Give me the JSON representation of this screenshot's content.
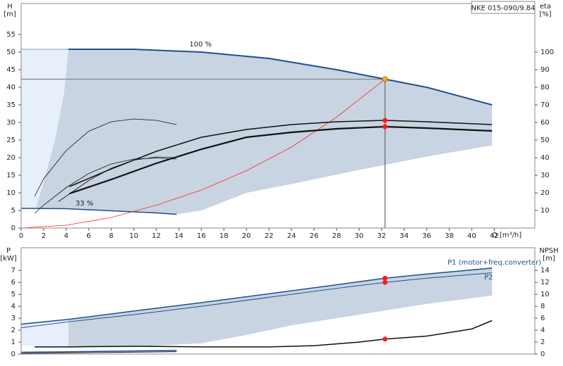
{
  "chart_data": [
    {
      "type": "line",
      "title": "NKE 015-090/9.84",
      "x_label": "Q [m³/h]",
      "y_label": "H",
      "y_unit": "[m]",
      "y2_label": "eta",
      "y2_unit": "[%]",
      "xlim": [
        0,
        45.6
      ],
      "xticks": [
        0,
        2,
        4,
        6,
        8,
        10,
        12,
        14,
        16,
        18,
        20,
        22,
        24,
        26,
        28,
        30,
        32,
        34,
        36,
        38,
        40,
        42
      ],
      "ylim": [
        0,
        63.8
      ],
      "yticks": [
        0,
        5,
        10,
        15,
        20,
        25,
        30,
        35,
        40,
        45,
        50,
        55
      ],
      "y2lim": [
        0,
        127.6
      ],
      "y2ticks": [
        10,
        20,
        30,
        40,
        50,
        60,
        70,
        80,
        90,
        100
      ],
      "annotations": [
        "100 %",
        "33 %"
      ],
      "regions": [
        {
          "color": "#e6effa",
          "x": [
            0,
            4.2,
            3.8,
            3,
            2,
            1.3,
            0
          ],
          "y": [
            50.8,
            50.8,
            38,
            25,
            13,
            5.6,
            5.6
          ]
        },
        {
          "color": "#c8d4e1",
          "x": [
            4.2,
            10,
            16,
            22,
            28,
            32.3,
            36,
            41.8,
            41.8,
            36,
            30,
            24,
            20,
            16,
            13.8,
            8,
            4,
            1.3,
            2,
            3,
            3.8
          ],
          "y": [
            50.8,
            50.8,
            50,
            48.2,
            45,
            42.3,
            40,
            35,
            23.5,
            20.3,
            16.5,
            12.5,
            10,
            5,
            3.9,
            4.9,
            5.5,
            5.6,
            13,
            25,
            38
          ]
        }
      ],
      "series": [
        {
          "color": "#7a9cc6",
          "width": 1,
          "x": [
            0,
            4.2
          ],
          "values": [
            50.8,
            50.8
          ]
        },
        {
          "color": "#1f4f8f",
          "width": 2,
          "x": [
            4.2,
            10,
            16,
            22,
            28,
            32.3,
            36,
            41.8
          ],
          "values": [
            50.8,
            50.8,
            50,
            48.2,
            45,
            42.3,
            40,
            35
          ]
        },
        {
          "color": "#1f4f8f",
          "width": 1.5,
          "x": [
            0,
            4,
            8,
            12,
            13.8
          ],
          "values": [
            5.6,
            5.5,
            4.9,
            4.3,
            3.9
          ]
        },
        {
          "color": "#ff2a2a",
          "width": 0.8,
          "x": [
            0,
            4,
            8,
            12,
            16,
            20,
            24,
            28,
            32.3
          ],
          "values": [
            0,
            0.8,
            3,
            6.5,
            10.8,
            16.3,
            23,
            31.5,
            42.3
          ]
        },
        {
          "color": "#111111",
          "width": 1.5,
          "axis": "y2",
          "x": [
            4.3,
            8,
            12,
            16,
            20,
            24,
            28,
            32.3,
            36,
            41.8
          ],
          "values": [
            23.6,
            33.6,
            43.6,
            51.6,
            56,
            58.8,
            60.4,
            61.2,
            60.4,
            58.8
          ]
        },
        {
          "color": "#111111",
          "width": 2.2,
          "axis": "y2",
          "x": [
            4.3,
            8,
            12,
            16,
            20,
            24,
            28,
            32.3,
            36,
            41.8
          ],
          "values": [
            19.6,
            27.6,
            36.8,
            44.8,
            51.6,
            54.4,
            56.4,
            57.6,
            56.8,
            55.2
          ]
        },
        {
          "color": "#111111",
          "width": 0.8,
          "axis": "y2",
          "x": [
            1.2,
            2,
            4,
            6,
            8,
            10,
            12,
            13.8
          ],
          "values": [
            18,
            28,
            44,
            55,
            60.4,
            62,
            61.2,
            58.8
          ]
        },
        {
          "color": "#111111",
          "width": 0.8,
          "axis": "y2",
          "x": [
            1.2,
            2,
            4,
            6,
            8,
            10,
            12,
            13.8
          ],
          "values": [
            8.4,
            13,
            23,
            31,
            36.4,
            39.2,
            39.8,
            39.2
          ]
        },
        {
          "color": "#111111",
          "width": 0.8,
          "axis": "y2",
          "x": [
            3.3,
            6,
            8,
            10,
            12,
            13.8
          ],
          "values": [
            15,
            27,
            34,
            38.6,
            40.4,
            40
          ]
        }
      ],
      "points": [
        {
          "x": 32.3,
          "y": 42.3,
          "color": "#f5b500"
        },
        {
          "x": 32.3,
          "y": 61.2,
          "axis": "y2",
          "color": "#ff1a1a"
        },
        {
          "x": 32.3,
          "y": 57.6,
          "axis": "y2",
          "color": "#ff1a1a"
        }
      ]
    },
    {
      "type": "line",
      "y_label": "P",
      "y_unit": "[kW]",
      "y2_label": "NPSH",
      "y2_unit": "[m]",
      "xlim": [
        0,
        45.6
      ],
      "ylim": [
        0,
        8.9
      ],
      "yticks": [
        0,
        1,
        2,
        3,
        4,
        5,
        6,
        7
      ],
      "y2lim": [
        0,
        17.8
      ],
      "y2ticks": [
        0,
        2,
        4,
        6,
        8,
        10,
        12,
        14
      ],
      "regions": [
        {
          "color": "#e6effa",
          "x": [
            0,
            4.2,
            4.2,
            0
          ],
          "y": [
            2.6,
            2.95,
            0.55,
            0.7
          ]
        },
        {
          "color": "#c8d4e1",
          "x": [
            4.2,
            10,
            16,
            22,
            28,
            32.3,
            36,
            41.8,
            41.8,
            36,
            30,
            24,
            20,
            16,
            10,
            4.2
          ],
          "y": [
            2.95,
            3.6,
            4.3,
            5.05,
            5.8,
            6.35,
            6.75,
            7.25,
            4.9,
            4.2,
            3.3,
            2.4,
            1.6,
            0.9,
            0.6,
            0.55
          ]
        }
      ],
      "series": [
        {
          "name": "P1 (motor+freq.converter)",
          "color": "#1f4f8f",
          "width": 1.5,
          "x": [
            0,
            4.2,
            10,
            16,
            22,
            28,
            32.3,
            36,
            41.8
          ],
          "values": [
            2.5,
            2.9,
            3.6,
            4.3,
            5.05,
            5.8,
            6.35,
            6.7,
            7.2
          ]
        },
        {
          "name": "P2",
          "color": "#1f4f8f",
          "width": 1,
          "x": [
            0,
            4.2,
            10,
            16,
            22,
            28,
            32.3,
            36,
            41.8
          ],
          "values": [
            2.2,
            2.7,
            3.3,
            4.0,
            4.75,
            5.5,
            6.0,
            6.35,
            6.8
          ]
        },
        {
          "color": "#111111",
          "width": 1.5,
          "axis": "y2",
          "x": [
            1.2,
            4,
            10,
            16,
            22,
            26,
            30,
            32.3,
            36,
            40,
            41.8
          ],
          "values": [
            1.2,
            1.2,
            1.3,
            1.2,
            1.2,
            1.4,
            2.0,
            2.5,
            3.0,
            4.2,
            5.6
          ]
        },
        {
          "color": "#1f4f8f",
          "width": 1.5,
          "x": [
            0,
            13.8
          ],
          "values": [
            0.15,
            0.3
          ]
        },
        {
          "color": "#111111",
          "width": 1,
          "x": [
            0,
            13.8
          ],
          "values": [
            0.05,
            0.2
          ]
        }
      ],
      "points": [
        {
          "x": 32.3,
          "y": 6.35,
          "color": "#ff1a1a"
        },
        {
          "x": 32.3,
          "y": 6.0,
          "color": "#ff1a1a"
        },
        {
          "x": 32.3,
          "y": 2.5,
          "axis": "y2",
          "color": "#ff1a1a"
        }
      ]
    }
  ]
}
